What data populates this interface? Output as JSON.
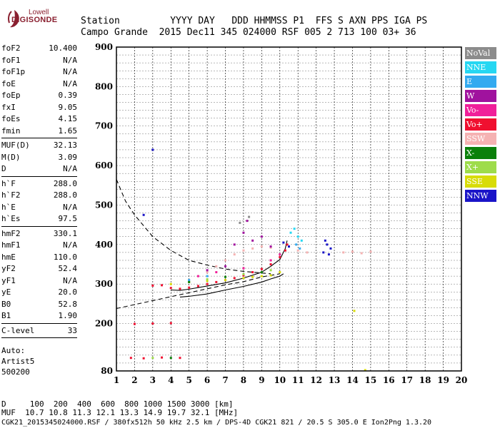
{
  "logo": {
    "line1": "Lowell",
    "line2": "DIGISONDE"
  },
  "header": {
    "row1": "Station         YYYY DAY   DDD HHMMSS P1  FFS S AXN PPS IGA PS",
    "row2": "Campo Grande  2015 Dec11 345 024000 RSF 005 2 713 100 03+ 36"
  },
  "params": [
    {
      "name": "foF2",
      "value": "10.400"
    },
    {
      "name": "foF1",
      "value": "N/A"
    },
    {
      "name": "foF1p",
      "value": "N/A"
    },
    {
      "name": "foE",
      "value": "N/A"
    },
    {
      "name": "foEp",
      "value": "0.39"
    },
    {
      "name": "fxI",
      "value": "9.05"
    },
    {
      "name": "foEs",
      "value": "4.15"
    },
    {
      "name": "fmin",
      "value": "1.65"
    },
    {
      "sep": true
    },
    {
      "name": "MUF(D)",
      "value": "32.13"
    },
    {
      "name": "M(D)",
      "value": "3.09"
    },
    {
      "name": "D",
      "value": "N/A"
    },
    {
      "sep": true
    },
    {
      "name": "h`F",
      "value": "288.0"
    },
    {
      "name": "h`F2",
      "value": "288.0"
    },
    {
      "name": "h`E",
      "value": "N/A"
    },
    {
      "name": "h`Es",
      "value": "97.5"
    },
    {
      "sep": true
    },
    {
      "name": "hmF2",
      "value": "330.1"
    },
    {
      "name": "hmF1",
      "value": "N/A"
    },
    {
      "name": "hmE",
      "value": "110.0"
    },
    {
      "name": "yF2",
      "value": "52.4"
    },
    {
      "name": "yF1",
      "value": "N/A"
    },
    {
      "name": "yE",
      "value": "20.0"
    },
    {
      "name": "B0",
      "value": "52.8"
    },
    {
      "name": "B1",
      "value": "1.90"
    },
    {
      "sep": true
    },
    {
      "name": "C-level",
      "value": "33"
    },
    {
      "sep": true
    }
  ],
  "auto": {
    "line1": "Auto:",
    "line2": "Artist5",
    "line3": "500200"
  },
  "legend": [
    {
      "label": "NoVal",
      "color": "#8c8c8c"
    },
    {
      "label": "NNE",
      "color": "#26d7f2"
    },
    {
      "label": "E",
      "color": "#33aaf0"
    },
    {
      "label": "W",
      "color": "#a0129e"
    },
    {
      "label": "Vo-",
      "color": "#f0209a"
    },
    {
      "label": "Vo+",
      "color": "#f01030"
    },
    {
      "label": "SSW",
      "color": "#f5b2b2"
    },
    {
      "label": "X-",
      "color": "#0a800a"
    },
    {
      "label": "X+",
      "color": "#9edc4a"
    },
    {
      "label": "SSE",
      "color": "#d8dc08"
    },
    {
      "label": "NNW",
      "color": "#1a14c8"
    }
  ],
  "bottom": {
    "line1": "D     100  200  400  600  800 1000 1500 3000 [km]",
    "line2": "MUF  10.7 10.8 11.3 12.1 13.3 14.9 19.7 32.1 [MHz]",
    "line3": "CGK21_2015345024000.RSF / 380fx512h 50 kHz 2.5 km / DPS-4D CGK21 821 / 20.5 S 305.0 E Ion2Png 1.3.20"
  },
  "chart_data": {
    "type": "scatter",
    "xlim": [
      1,
      20
    ],
    "ylim": [
      80,
      900
    ],
    "xticks": [
      1,
      2,
      3,
      4,
      5,
      6,
      7,
      8,
      9,
      10,
      11,
      12,
      13,
      14,
      15,
      16,
      17,
      18,
      19,
      20
    ],
    "yticks": [
      80,
      200,
      300,
      400,
      500,
      600,
      700,
      800,
      900
    ],
    "grid": true,
    "series": [
      {
        "name": "Vo+",
        "color": "#f01030",
        "points": [
          [
            3.0,
            296
          ],
          [
            3.5,
            297
          ],
          [
            4.0,
            290
          ],
          [
            4.5,
            288
          ],
          [
            5.0,
            291
          ],
          [
            5.5,
            295
          ],
          [
            6.0,
            300
          ],
          [
            6.5,
            305
          ],
          [
            7.0,
            310
          ],
          [
            7.5,
            315
          ],
          [
            8.0,
            322
          ],
          [
            8.5,
            330
          ],
          [
            9.0,
            338
          ],
          [
            9.5,
            350
          ],
          [
            10.0,
            368
          ],
          [
            10.3,
            385
          ],
          [
            10.4,
            400
          ],
          [
            1.8,
            113
          ],
          [
            2.5,
            112
          ],
          [
            3.5,
            114
          ],
          [
            4.5,
            113
          ],
          [
            2.0,
            199
          ],
          [
            3.0,
            200
          ],
          [
            4.0,
            201
          ]
        ]
      },
      {
        "name": "SSW",
        "color": "#f5b2b2",
        "points": [
          [
            6.0,
            330
          ],
          [
            6.5,
            345
          ],
          [
            7.0,
            360
          ],
          [
            7.5,
            375
          ],
          [
            8.0,
            385
          ],
          [
            8.5,
            390
          ],
          [
            9.0,
            395
          ],
          [
            9.5,
            392
          ],
          [
            10.5,
            395
          ],
          [
            11.0,
            385
          ],
          [
            11.5,
            380
          ],
          [
            13.5,
            380
          ],
          [
            14.0,
            382
          ],
          [
            14.5,
            378
          ],
          [
            15.0,
            382
          ]
        ]
      },
      {
        "name": "SSE",
        "color": "#d8dc08",
        "points": [
          [
            4.0,
            300
          ],
          [
            5.0,
            305
          ],
          [
            6.0,
            308
          ],
          [
            7.0,
            310
          ],
          [
            8.0,
            315
          ],
          [
            8.5,
            318
          ],
          [
            9.0,
            320
          ],
          [
            9.5,
            322
          ],
          [
            10.0,
            330
          ],
          [
            14.1,
            232
          ],
          [
            14.7,
            82
          ]
        ]
      },
      {
        "name": "W",
        "color": "#a0129e",
        "points": [
          [
            7.5,
            400
          ],
          [
            8.0,
            430
          ],
          [
            8.2,
            460
          ],
          [
            8.5,
            410
          ],
          [
            9.0,
            420
          ],
          [
            9.5,
            395
          ],
          [
            6.0,
            335
          ],
          [
            7.0,
            345
          ]
        ]
      },
      {
        "name": "NNE",
        "color": "#26d7f2",
        "points": [
          [
            10.8,
            440
          ],
          [
            11.0,
            420
          ],
          [
            11.2,
            410
          ],
          [
            10.6,
            430
          ]
        ]
      },
      {
        "name": "E",
        "color": "#33aaf0",
        "points": [
          [
            10.9,
            400
          ],
          [
            11.1,
            390
          ],
          [
            5.0,
            310
          ],
          [
            6.0,
            320
          ]
        ]
      },
      {
        "name": "Vo-",
        "color": "#f0209a",
        "points": [
          [
            5.5,
            320
          ],
          [
            6.5,
            330
          ],
          [
            8.0,
            340
          ],
          [
            9.5,
            360
          ],
          [
            10.0,
            375
          ]
        ]
      },
      {
        "name": "X-",
        "color": "#0a800a",
        "points": [
          [
            5.0,
            305
          ],
          [
            7.0,
            318
          ],
          [
            9.0,
            330
          ],
          [
            4.0,
            113
          ]
        ]
      },
      {
        "name": "X+",
        "color": "#9edc4a",
        "points": [
          [
            6.0,
            312
          ],
          [
            8.0,
            325
          ],
          [
            9.5,
            335
          ],
          [
            3.0,
            113
          ]
        ]
      },
      {
        "name": "NNW",
        "color": "#1a14c8",
        "points": [
          [
            12.4,
            380
          ],
          [
            12.6,
            400
          ],
          [
            12.8,
            390
          ],
          [
            12.5,
            410
          ],
          [
            12.7,
            375
          ],
          [
            10.2,
            405
          ],
          [
            10.5,
            395
          ],
          [
            3.0,
            640
          ],
          [
            2.5,
            475
          ]
        ]
      },
      {
        "name": "NoVal",
        "color": "#8c8c8c",
        "points": [
          [
            8.3,
            470
          ],
          [
            7.8,
            455
          ]
        ]
      }
    ],
    "curves": [
      {
        "style": "dashed",
        "x": [
          1.0,
          1.5,
          2.0,
          3.0,
          4.0,
          5.0,
          6.0,
          7.0,
          8.0,
          9.0,
          9.5
        ],
        "y": [
          565,
          510,
          475,
          420,
          385,
          360,
          348,
          338,
          332,
          328,
          326
        ]
      },
      {
        "style": "dashed",
        "x": [
          1.0,
          2.0,
          3.0,
          4.0,
          5.0,
          6.0,
          7.0,
          8.0,
          9.0,
          10.0
        ],
        "y": [
          238,
          248,
          258,
          268,
          278,
          288,
          298,
          306,
          318,
          326
        ]
      },
      {
        "style": "solid",
        "x": [
          4.0,
          4.5,
          5.0,
          6.0,
          7.0,
          8.0,
          9.0,
          9.5,
          10.0,
          10.3,
          10.4
        ],
        "y": [
          285,
          284,
          287,
          295,
          303,
          315,
          330,
          345,
          362,
          390,
          410
        ]
      },
      {
        "style": "solid",
        "x": [
          4.5,
          5.0,
          6.0,
          7.0,
          8.0,
          9.0,
          9.5,
          10.0,
          10.2
        ],
        "y": [
          267,
          269,
          275,
          285,
          294,
          305,
          313,
          320,
          326
        ]
      }
    ]
  }
}
